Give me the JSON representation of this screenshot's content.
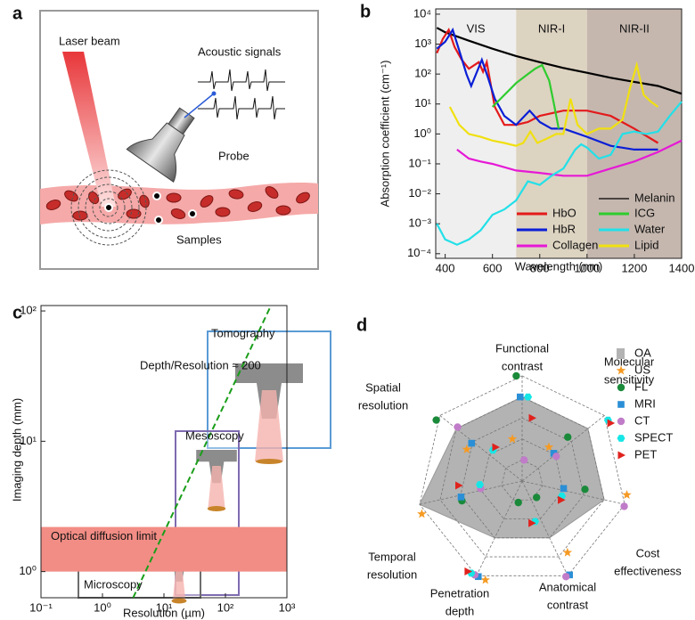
{
  "diagram": {
    "panel": "a",
    "labels": {
      "laser": "Laser beam",
      "signals": "Acoustic signals",
      "probe": "Probe",
      "samples": "Samples"
    }
  },
  "chart_data": [
    {
      "type": "line",
      "panel": "b",
      "xlabel": "Wavelength (nm)",
      "ylabel": "Absorption coefficient (cm⁻¹)",
      "xlim": [
        360,
        1400
      ],
      "xticks": [
        400,
        600,
        800,
        1000,
        1200,
        1400
      ],
      "ylog": true,
      "ylim": [
        7e-05,
        15000
      ],
      "yticks": [
        {
          "value": 10000,
          "label": "10⁴"
        },
        {
          "value": 1000,
          "label": "10³"
        },
        {
          "value": 100,
          "label": "10²"
        },
        {
          "value": 10,
          "label": "10¹"
        },
        {
          "value": 1,
          "label": "10⁰"
        },
        {
          "value": 0.1,
          "label": "10⁻¹"
        },
        {
          "value": 0.01,
          "label": "10⁻²"
        },
        {
          "value": 0.001,
          "label": "10⁻³"
        },
        {
          "value": 0.0001,
          "label": "10⁻⁴"
        }
      ],
      "regions": [
        {
          "label": "VIS",
          "range": [
            360,
            700
          ],
          "color": "#efefef"
        },
        {
          "label": "NIR-I",
          "range": [
            700,
            1000
          ],
          "color": "#ddd3c1"
        },
        {
          "label": "NIR-II",
          "range": [
            1000,
            1400
          ],
          "color": "#c5b7ae"
        }
      ],
      "series": [
        {
          "name": "Melanin",
          "color": "#000000",
          "x": [
            365,
            400,
            500,
            600,
            700,
            800,
            900,
            1000,
            1100,
            1200,
            1300,
            1400
          ],
          "values": [
            3500,
            2500,
            1300,
            700,
            400,
            250,
            160,
            110,
            75,
            55,
            40,
            22
          ]
        },
        {
          "name": "HbO",
          "color": "#e31a1c",
          "x": [
            365,
            390,
            415,
            440,
            470,
            500,
            542,
            560,
            576,
            590,
            610,
            650,
            700,
            750,
            800,
            900,
            1000,
            1100,
            1200,
            1300
          ],
          "values": [
            500,
            1500,
            3000,
            800,
            300,
            150,
            250,
            120,
            250,
            60,
            8,
            2,
            2,
            2.5,
            4,
            6,
            6,
            4,
            1.5,
            0.5
          ]
        },
        {
          "name": "HbR",
          "color": "#0a1fd6",
          "x": [
            365,
            400,
            432,
            460,
            490,
            510,
            555,
            580,
            610,
            650,
            700,
            757,
            800,
            850,
            900,
            1000,
            1100,
            1200,
            1300
          ],
          "values": [
            700,
            1200,
            3000,
            600,
            100,
            40,
            300,
            80,
            15,
            4,
            2,
            6,
            2.5,
            1.5,
            1.5,
            0.8,
            0.4,
            0.3,
            0.3
          ]
        },
        {
          "name": "Collagen",
          "color": "#e619d6",
          "x": [
            450,
            500,
            550,
            600,
            700,
            800,
            900,
            1000,
            1100,
            1200,
            1300,
            1400
          ],
          "values": [
            0.3,
            0.15,
            0.12,
            0.1,
            0.06,
            0.05,
            0.04,
            0.04,
            0.07,
            0.12,
            0.25,
            0.6
          ]
        },
        {
          "name": "ICG",
          "color": "#2ecc2e",
          "x": [
            600,
            650,
            700,
            750,
            780,
            810,
            840,
            860,
            880
          ],
          "values": [
            8,
            20,
            50,
            100,
            150,
            200,
            60,
            10,
            1.5
          ]
        },
        {
          "name": "Water",
          "color": "#22e0e8",
          "x": [
            365,
            400,
            450,
            500,
            550,
            600,
            650,
            700,
            750,
            800,
            850,
            900,
            950,
            975,
            1000,
            1050,
            1100,
            1150,
            1200,
            1250,
            1300,
            1350,
            1400
          ],
          "values": [
            0.001,
            0.0003,
            0.0002,
            0.0003,
            0.0006,
            0.002,
            0.003,
            0.006,
            0.026,
            0.02,
            0.04,
            0.07,
            0.3,
            0.45,
            0.35,
            0.15,
            0.2,
            1,
            1.2,
            1,
            1.2,
            4,
            12
          ]
        },
        {
          "name": "Lipid",
          "color": "#f0e010",
          "x": [
            420,
            460,
            500,
            550,
            600,
            650,
            700,
            730,
            760,
            790,
            830,
            870,
            900,
            930,
            960,
            1000,
            1050,
            1100,
            1150,
            1180,
            1210,
            1240,
            1270,
            1300
          ],
          "values": [
            8,
            2,
            1,
            0.8,
            0.6,
            0.5,
            0.4,
            0.5,
            1.2,
            0.5,
            0.7,
            1,
            1,
            15,
            2,
            1,
            1.5,
            1.5,
            3,
            30,
            200,
            20,
            12,
            8
          ]
        }
      ]
    },
    {
      "type": "line",
      "panel": "c",
      "xlabel": "Resolution (µm)",
      "ylabel": "Imaging depth (mm)",
      "xlog": true,
      "xlim": [
        0.1,
        1000
      ],
      "xticks": [
        {
          "value": 0.1,
          "label": "10⁻¹"
        },
        {
          "value": 1,
          "label": "10⁰"
        },
        {
          "value": 10,
          "label": "10¹"
        },
        {
          "value": 100,
          "label": "10²"
        },
        {
          "value": 1000,
          "label": "10³"
        }
      ],
      "ylog": true,
      "ylim": [
        0.63,
        110
      ],
      "yticks": [
        {
          "value": 1,
          "label": "10⁰"
        },
        {
          "value": 10,
          "label": "10¹"
        },
        {
          "value": 100,
          "label": "10²"
        }
      ],
      "bands": [
        {
          "label": "Optical diffusion limit",
          "range": [
            1,
            2.2
          ],
          "color": "#f28d85"
        }
      ],
      "series": [
        {
          "name": "Depth/Resolution ≈ 200",
          "color": "#1a9e1a",
          "dashed": true,
          "x": [
            3.15,
            550
          ],
          "values": [
            0.63,
            110
          ]
        }
      ],
      "annotations": [
        "Tomography",
        "Mesoscopy",
        "Microscopy"
      ]
    },
    {
      "type": "radar",
      "panel": "d",
      "axes": [
        [
          "Functional",
          "contrast"
        ],
        [
          "Molecular",
          "sensitivity"
        ],
        [
          "Cost",
          "effectiveness"
        ],
        [
          "Anatomical",
          "contrast"
        ],
        [
          "Penetration",
          "depth"
        ],
        [
          "Temporal",
          "resolution"
        ],
        [
          "Spatial",
          "resolution"
        ]
      ],
      "rlim": [
        0,
        5
      ],
      "rticks": [
        1,
        2,
        3,
        4,
        5
      ],
      "series": [
        {
          "name": "OA",
          "color": "#b3b3b3",
          "marker": "area",
          "values": [
            4,
            4,
            4,
            3,
            3,
            5,
            4
          ]
        },
        {
          "name": "US",
          "color": "#f59a23",
          "marker": "star",
          "values": [
            2,
            2,
            5,
            4,
            5,
            5,
            3
          ]
        },
        {
          "name": "FL",
          "color": "#1a8a3a",
          "marker": "circle",
          "values": [
            5,
            3,
            3,
            1,
            1,
            3,
            5
          ]
        },
        {
          "name": "MRI",
          "color": "#2a8fd6",
          "marker": "square",
          "values": [
            4,
            2,
            2,
            5,
            5,
            3,
            3
          ]
        },
        {
          "name": "CT",
          "color": "#c07cc8",
          "marker": "circle",
          "values": [
            1,
            2,
            5,
            5,
            5,
            2,
            4
          ]
        },
        {
          "name": "SPECT",
          "color": "#17e6e6",
          "marker": "hexagon",
          "values": [
            4,
            5,
            2,
            2,
            5,
            2,
            2
          ]
        },
        {
          "name": "PET",
          "color": "#e0221d",
          "marker": "triangle",
          "values": [
            3,
            5,
            2,
            2,
            5,
            3,
            2
          ]
        }
      ]
    }
  ]
}
